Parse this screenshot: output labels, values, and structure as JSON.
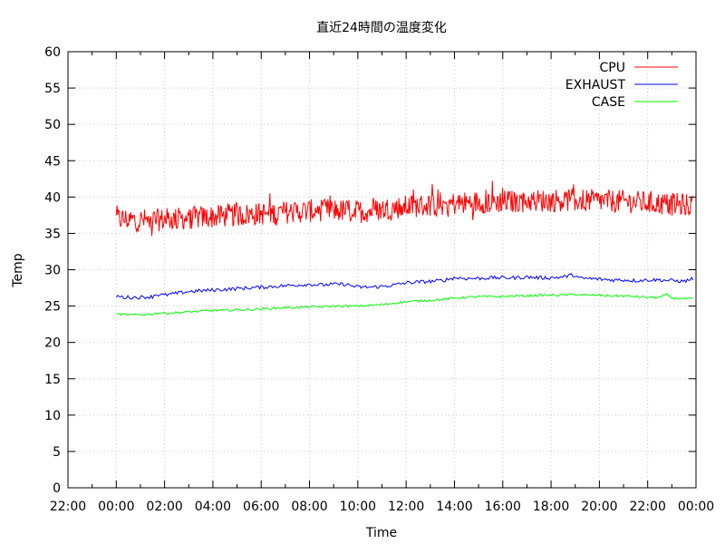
{
  "chart_data": {
    "type": "line",
    "title": "直近24時間の温度変化",
    "xlabel": "Time",
    "ylabel": "Temp",
    "xlim_hours": [
      -2,
      24
    ],
    "ylim": [
      0,
      60
    ],
    "y_ticks": [
      0,
      5,
      10,
      15,
      20,
      25,
      30,
      35,
      40,
      45,
      50,
      55,
      60
    ],
    "x_ticks": [
      {
        "h": -2,
        "label": "22:00"
      },
      {
        "h": 0,
        "label": "00:00"
      },
      {
        "h": 2,
        "label": "02:00"
      },
      {
        "h": 4,
        "label": "04:00"
      },
      {
        "h": 6,
        "label": "06:00"
      },
      {
        "h": 8,
        "label": "08:00"
      },
      {
        "h": 10,
        "label": "10:00"
      },
      {
        "h": 12,
        "label": "12:00"
      },
      {
        "h": 14,
        "label": "14:00"
      },
      {
        "h": 16,
        "label": "16:00"
      },
      {
        "h": 18,
        "label": "18:00"
      },
      {
        "h": 20,
        "label": "20:00"
      },
      {
        "h": 22,
        "label": "22:00"
      },
      {
        "h": 24,
        "label": "00:00"
      }
    ],
    "grid": true,
    "legend_position": "top-right",
    "series": [
      {
        "name": "CPU",
        "color": "#ff0000",
        "x": [
          0,
          0.5,
          1,
          1.5,
          2,
          2.5,
          3,
          3.5,
          4,
          4.5,
          5,
          5.5,
          6,
          6.5,
          7,
          7.5,
          8,
          8.5,
          9,
          9.5,
          10,
          10.5,
          11,
          11.5,
          12,
          12.5,
          13,
          13.5,
          14,
          14.5,
          15,
          15.5,
          16,
          16.5,
          17,
          17.5,
          18,
          18.5,
          19,
          19.5,
          20,
          20.5,
          21,
          21.5,
          22,
          22.5,
          23,
          23.5,
          23.9
        ],
        "y": [
          37.0,
          36.9,
          36.8,
          36.8,
          36.9,
          37.0,
          37.1,
          37.2,
          37.3,
          37.4,
          37.5,
          37.6,
          37.7,
          37.8,
          37.9,
          38.0,
          38.1,
          38.2,
          38.2,
          38.1,
          38.0,
          38.1,
          38.3,
          38.5,
          38.7,
          38.8,
          38.9,
          39.0,
          39.1,
          39.2,
          39.3,
          39.3,
          39.4,
          39.4,
          39.5,
          39.5,
          39.5,
          39.6,
          39.6,
          39.5,
          39.5,
          39.4,
          39.4,
          39.3,
          39.2,
          39.1,
          39.0,
          38.9,
          38.9
        ],
        "noise": 1.6
      },
      {
        "name": "EXHAUST",
        "color": "#0000ff",
        "x": [
          0,
          0.3,
          1.0,
          1.5,
          1.6,
          2.0,
          2.2,
          2.6,
          3.0,
          3.5,
          4.0,
          4.5,
          5.0,
          5.5,
          6.0,
          6.5,
          7.0,
          7.5,
          8.0,
          8.5,
          9.0,
          9.5,
          10.0,
          10.5,
          11.0,
          11.5,
          12.0,
          12.5,
          13.0,
          13.5,
          14.0,
          14.5,
          15.0,
          15.5,
          16.0,
          16.5,
          17.0,
          17.5,
          18.0,
          18.5,
          18.9,
          19.2,
          19.5,
          20.0,
          20.5,
          21.0,
          21.5,
          22.0,
          22.5,
          23.0,
          23.5,
          23.9
        ],
        "y": [
          26.4,
          26.2,
          26.2,
          26.3,
          26.6,
          26.5,
          26.6,
          26.8,
          27.0,
          27.1,
          27.2,
          27.3,
          27.4,
          27.5,
          27.6,
          27.7,
          27.8,
          27.9,
          28.0,
          27.9,
          28.0,
          28.0,
          27.6,
          27.6,
          27.7,
          27.9,
          28.2,
          28.3,
          28.4,
          28.5,
          28.9,
          28.8,
          28.8,
          28.9,
          28.9,
          28.9,
          29.0,
          28.9,
          28.9,
          29.0,
          29.3,
          28.8,
          28.8,
          28.7,
          28.6,
          28.6,
          28.5,
          28.6,
          28.6,
          28.5,
          28.4,
          28.8
        ],
        "noise": 0.25
      },
      {
        "name": "CASE",
        "color": "#00ff00",
        "x": [
          0,
          0.5,
          1.0,
          1.5,
          1.8,
          2.0,
          2.5,
          3.0,
          3.5,
          4.0,
          4.5,
          5.0,
          5.5,
          6.0,
          6.5,
          7.0,
          7.5,
          8.0,
          8.5,
          9.0,
          9.5,
          10.0,
          10.5,
          11.0,
          11.5,
          12.0,
          12.5,
          13.0,
          13.5,
          14.0,
          14.5,
          15.0,
          15.5,
          16.0,
          16.5,
          17.0,
          17.5,
          18.0,
          18.5,
          19.0,
          19.5,
          20.0,
          20.5,
          21.0,
          21.5,
          22.0,
          22.5,
          22.8,
          23.0,
          23.5,
          23.9
        ],
        "y": [
          23.9,
          23.8,
          23.8,
          23.9,
          24.1,
          24.0,
          24.1,
          24.2,
          24.3,
          24.4,
          24.4,
          24.5,
          24.5,
          24.6,
          24.7,
          24.8,
          24.8,
          24.9,
          24.9,
          25.0,
          25.0,
          25.0,
          25.1,
          25.2,
          25.4,
          25.6,
          25.7,
          25.8,
          25.9,
          26.1,
          26.2,
          26.3,
          26.3,
          26.3,
          26.4,
          26.4,
          26.5,
          26.5,
          26.5,
          26.6,
          26.5,
          26.5,
          26.4,
          26.4,
          26.3,
          26.2,
          26.2,
          26.6,
          26.1,
          26.0,
          26.0
        ],
        "noise": 0.15
      }
    ]
  }
}
